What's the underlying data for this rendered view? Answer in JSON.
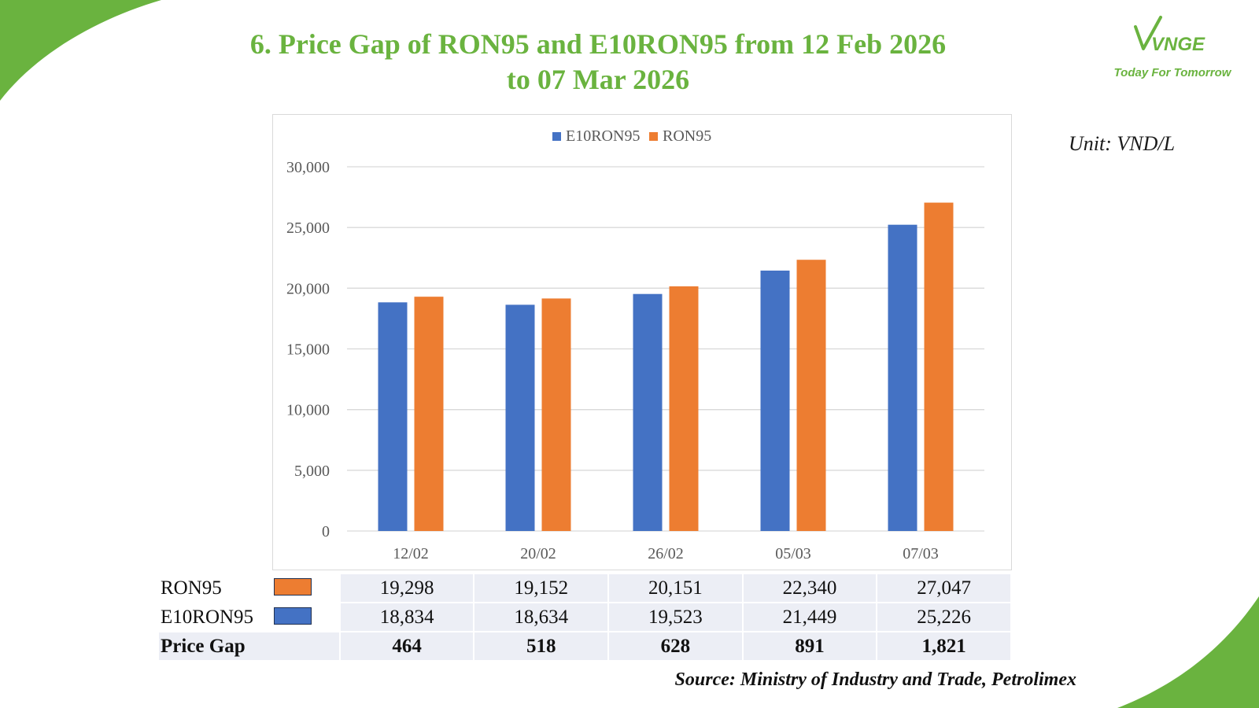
{
  "slide": {
    "title_line1": "6. Price Gap of RON95 and E10RON95 from 12 Feb 2026",
    "title_line2": "to 07 Mar 2026",
    "unit": "Unit: VND/L",
    "source": "Source: Ministry of Industry and Trade, Petrolimex",
    "accent_color": "#6ab33f"
  },
  "logo": {
    "brand_text": "VNGE",
    "tagline": "Today For Tomorrow",
    "icon": "vnge-logo-icon"
  },
  "chart_data": {
    "type": "bar",
    "categories": [
      "12/02",
      "20/02",
      "26/02",
      "05/03",
      "07/03"
    ],
    "series": [
      {
        "name": "E10RON95",
        "color": "#4472c4",
        "values": [
          18834,
          18634,
          19523,
          21449,
          25226
        ]
      },
      {
        "name": "RON95",
        "color": "#ed7d31",
        "values": [
          19298,
          19152,
          20151,
          22340,
          27047
        ]
      }
    ],
    "ylim": [
      0,
      30000
    ],
    "yticks": [
      "0",
      "5,000",
      "10,000",
      "15,000",
      "20,000",
      "25,000",
      "30,000"
    ],
    "ytick_values": [
      0,
      5000,
      10000,
      15000,
      20000,
      25000,
      30000
    ],
    "grid": true,
    "legend": "top-center"
  },
  "table": {
    "rows": [
      {
        "label": "RON95",
        "color": "#ed7d31",
        "values": [
          "19,298",
          "19,152",
          "20,151",
          "22,340",
          "27,047"
        ]
      },
      {
        "label": "E10RON95",
        "color": "#4472c4",
        "values": [
          "18,834",
          "18,634",
          "19,523",
          "21,449",
          "25,226"
        ]
      },
      {
        "label": "Price Gap",
        "values": [
          "464",
          "518",
          "628",
          "891",
          "1,821"
        ]
      }
    ]
  }
}
